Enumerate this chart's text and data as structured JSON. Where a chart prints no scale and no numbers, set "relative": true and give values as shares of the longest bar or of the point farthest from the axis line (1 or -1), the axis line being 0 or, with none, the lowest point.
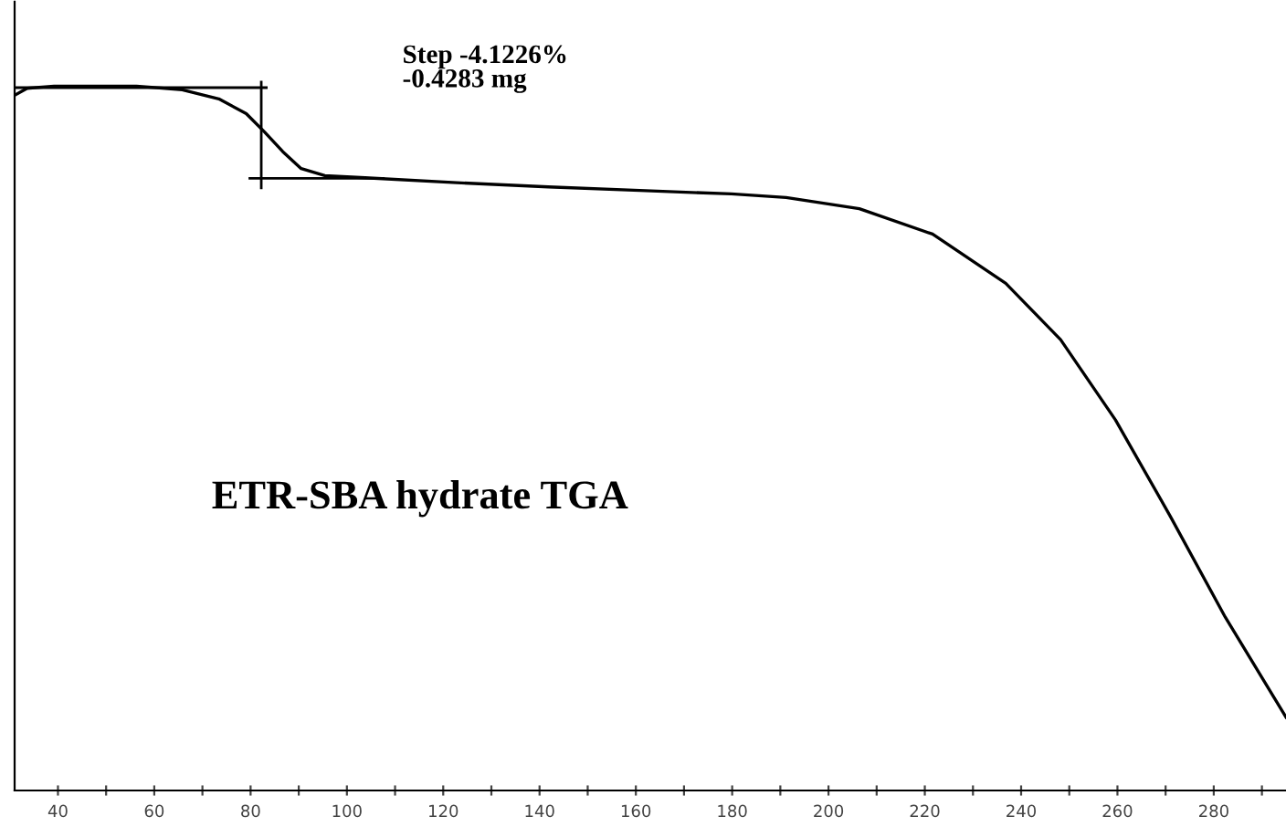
{
  "chart_data": {
    "type": "line",
    "relative": true,
    "color": "#000000",
    "x": [
      31,
      33.6,
      39.2,
      56.3,
      65.8,
      73.4,
      79.1,
      82.9,
      86.7,
      90.5,
      95.4,
      103.8,
      122.8,
      141.8,
      160.8,
      179.8,
      191.2,
      206.4,
      221.6,
      236.8,
      248.2,
      259.6,
      271.0,
      282.4,
      295
    ],
    "values": [
      0.987,
      0.997,
      1.0,
      1.0,
      0.995,
      0.982,
      0.961,
      0.935,
      0.907,
      0.883,
      0.873,
      0.87,
      0.863,
      0.857,
      0.852,
      0.847,
      0.842,
      0.826,
      0.79,
      0.72,
      0.64,
      0.526,
      0.389,
      0.246,
      0.104
    ],
    "xlim": [
      31,
      295
    ],
    "xticks": [
      40,
      {
        "value": 50,
        "label": null
      },
      60,
      {
        "value": 70,
        "label": null
      },
      80,
      {
        "value": 90,
        "label": null
      },
      100,
      {
        "value": 110,
        "label": null
      },
      120,
      {
        "value": 130,
        "label": null
      },
      140,
      {
        "value": 150,
        "label": null
      },
      160,
      {
        "value": 170,
        "label": null
      },
      180,
      {
        "value": 190,
        "label": null
      },
      200,
      {
        "value": 210,
        "label": null
      },
      220,
      {
        "value": 230,
        "label": null
      },
      240,
      {
        "value": 250,
        "label": null
      },
      260,
      {
        "value": 270,
        "label": null
      },
      280,
      {
        "value": 290,
        "label": null
      }
    ],
    "grid": false,
    "marker": "none",
    "line_style": "solid",
    "tick_labels": "x",
    "annotations": [
      "Step -4.1226%\n-0.4283 mg",
      "ETR-SBA hydrate TGA"
    ]
  }
}
